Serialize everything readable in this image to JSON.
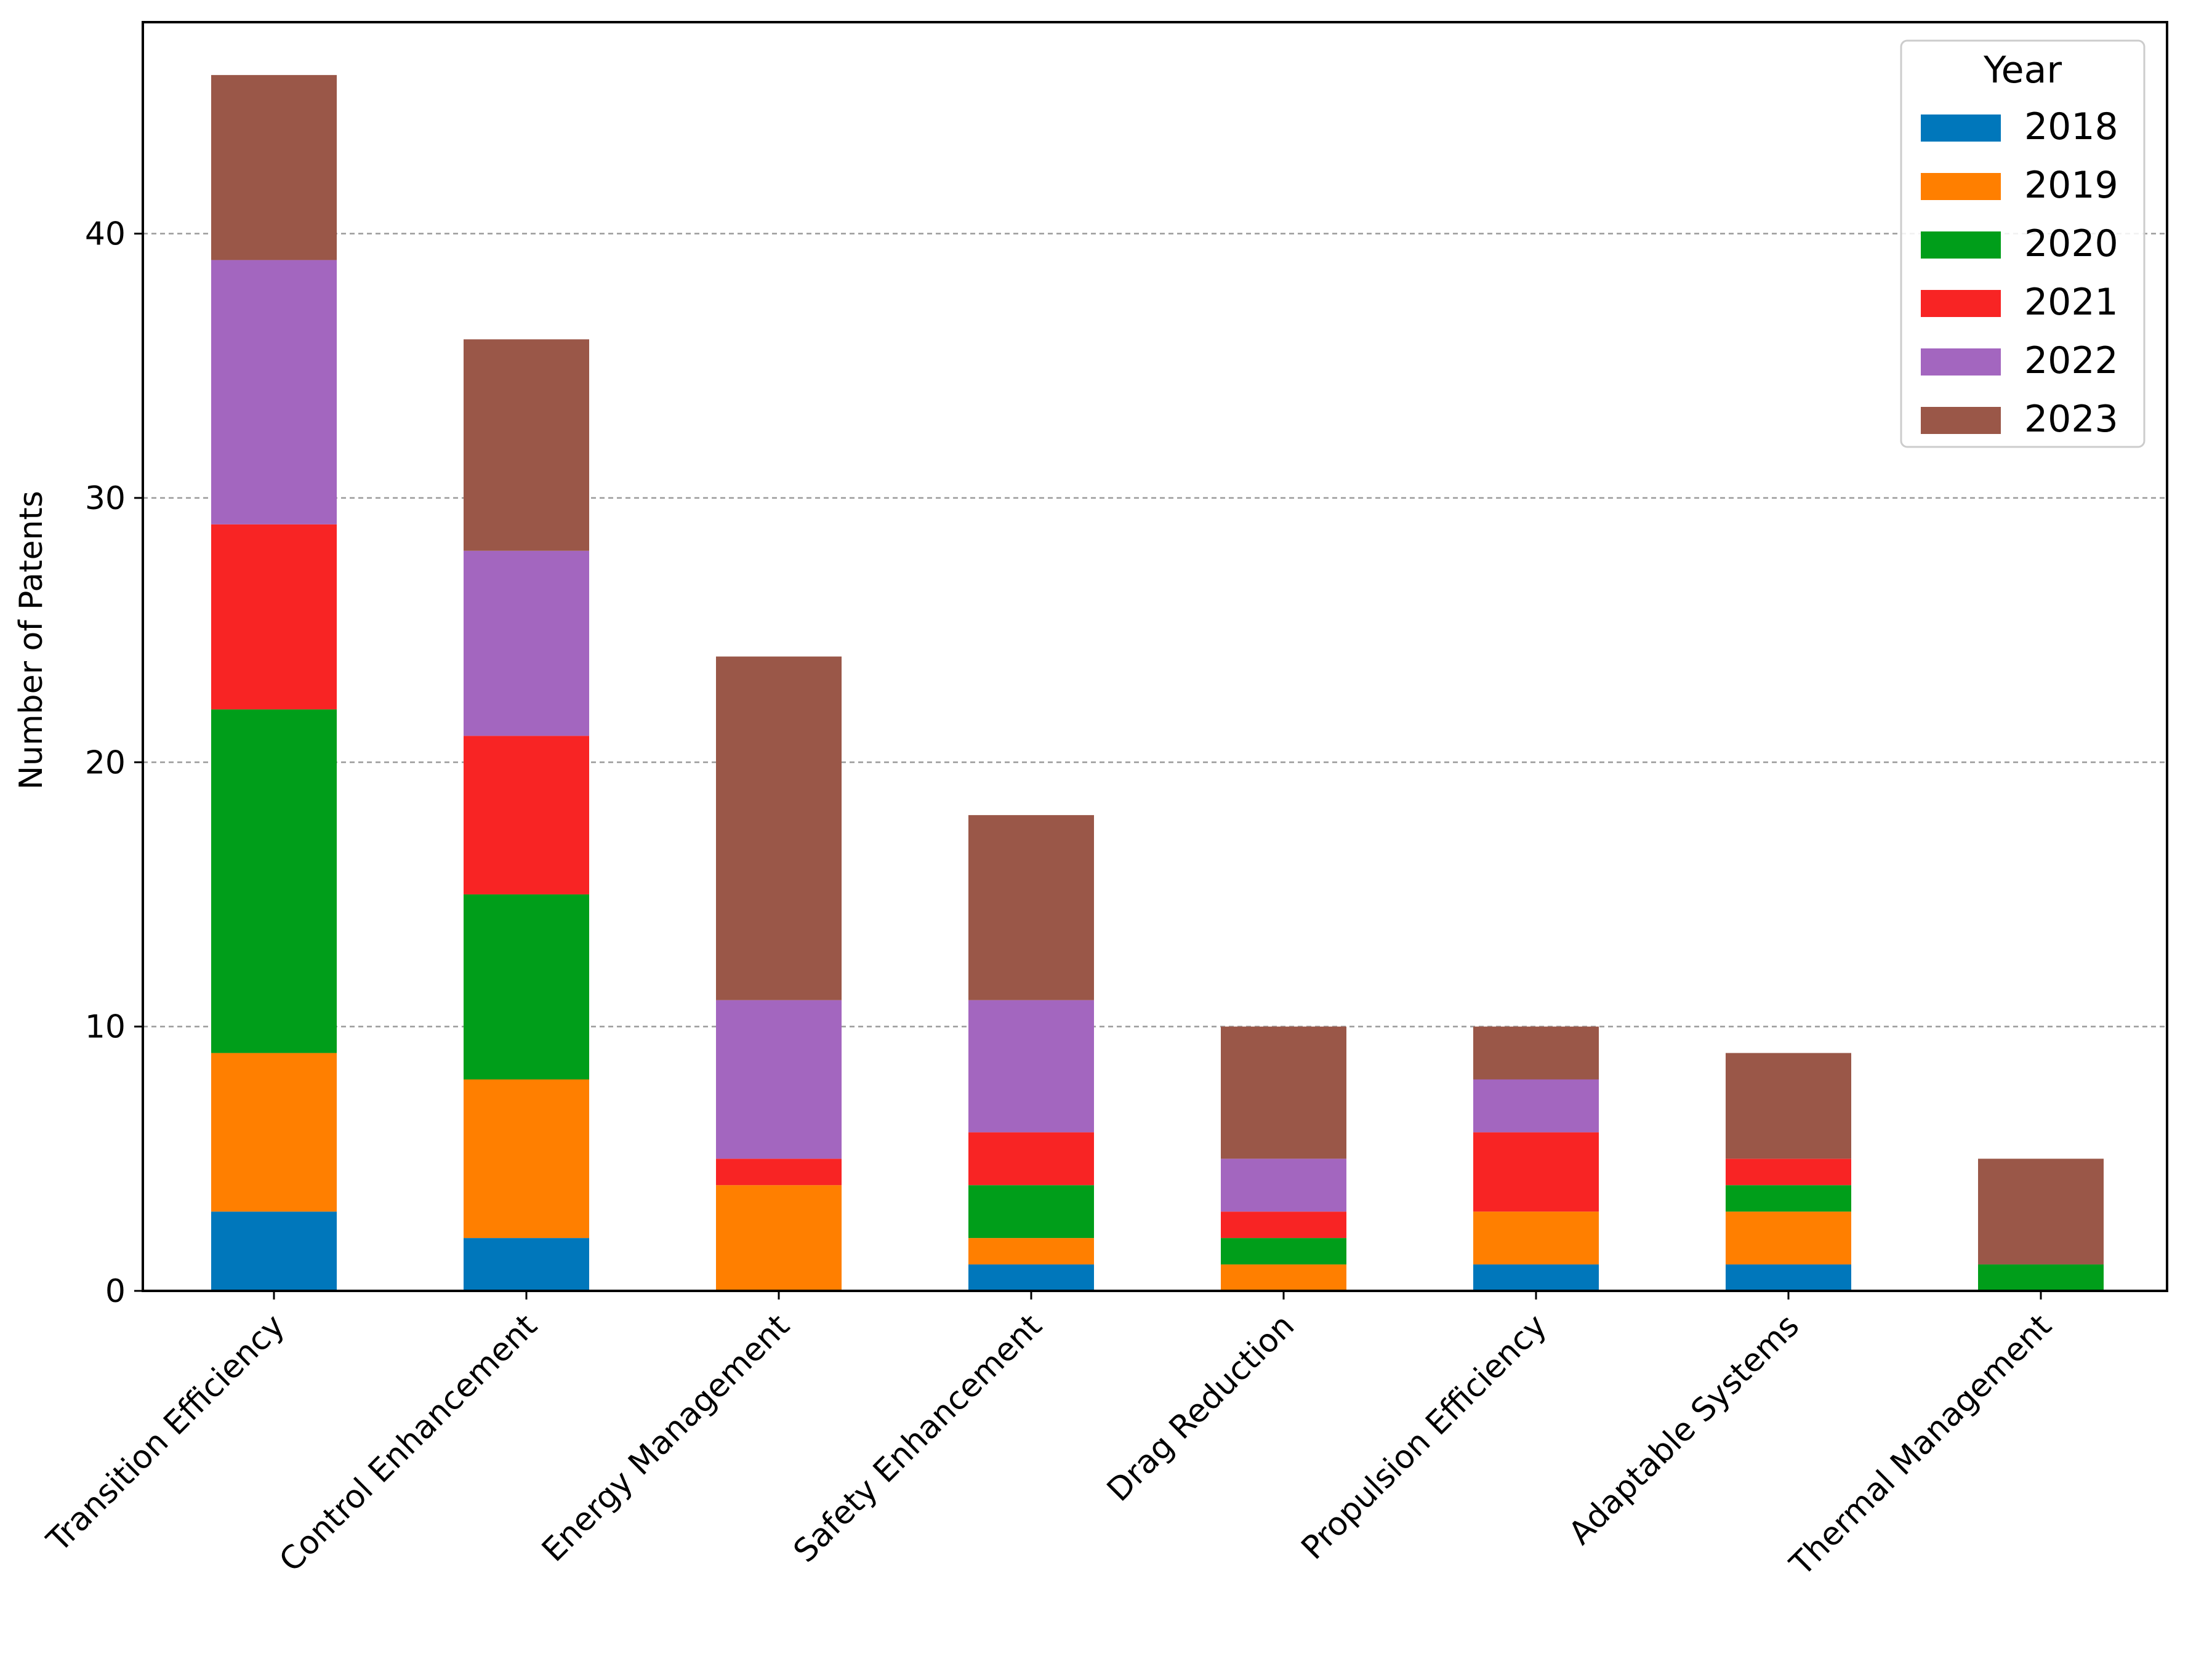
{
  "chart_data": {
    "type": "bar",
    "stacked": true,
    "title": "",
    "xlabel": "",
    "ylabel": "Number of Patents",
    "ylim": [
      0,
      48
    ],
    "yticks": [
      0,
      10,
      20,
      30,
      40
    ],
    "grid": "y-dashed",
    "legend": {
      "title": "Year",
      "placement": "top-right"
    },
    "categories": [
      "Transition Efficiency",
      "Control Enhancement",
      "Energy Management",
      "Safety Enhancement",
      "Drag Reduction",
      "Propulsion Efficiency",
      "Adaptable Systems",
      "Thermal Management"
    ],
    "series": [
      {
        "name": "2018",
        "color": "#0077bb",
        "values": [
          3,
          2,
          0,
          1,
          0,
          1,
          1,
          0
        ]
      },
      {
        "name": "2019",
        "color": "#ff7f00",
        "values": [
          6,
          6,
          4,
          1,
          1,
          2,
          2,
          0
        ]
      },
      {
        "name": "2020",
        "color": "#009e1a",
        "values": [
          13,
          7,
          0,
          2,
          1,
          0,
          1,
          1
        ]
      },
      {
        "name": "2021",
        "color": "#f82424",
        "values": [
          7,
          6,
          1,
          2,
          1,
          3,
          1,
          0
        ]
      },
      {
        "name": "2022",
        "color": "#a366bf",
        "values": [
          10,
          7,
          6,
          5,
          2,
          2,
          0,
          0
        ]
      },
      {
        "name": "2023",
        "color": "#9a5748",
        "values": [
          7,
          8,
          13,
          7,
          5,
          2,
          4,
          4
        ]
      }
    ]
  }
}
